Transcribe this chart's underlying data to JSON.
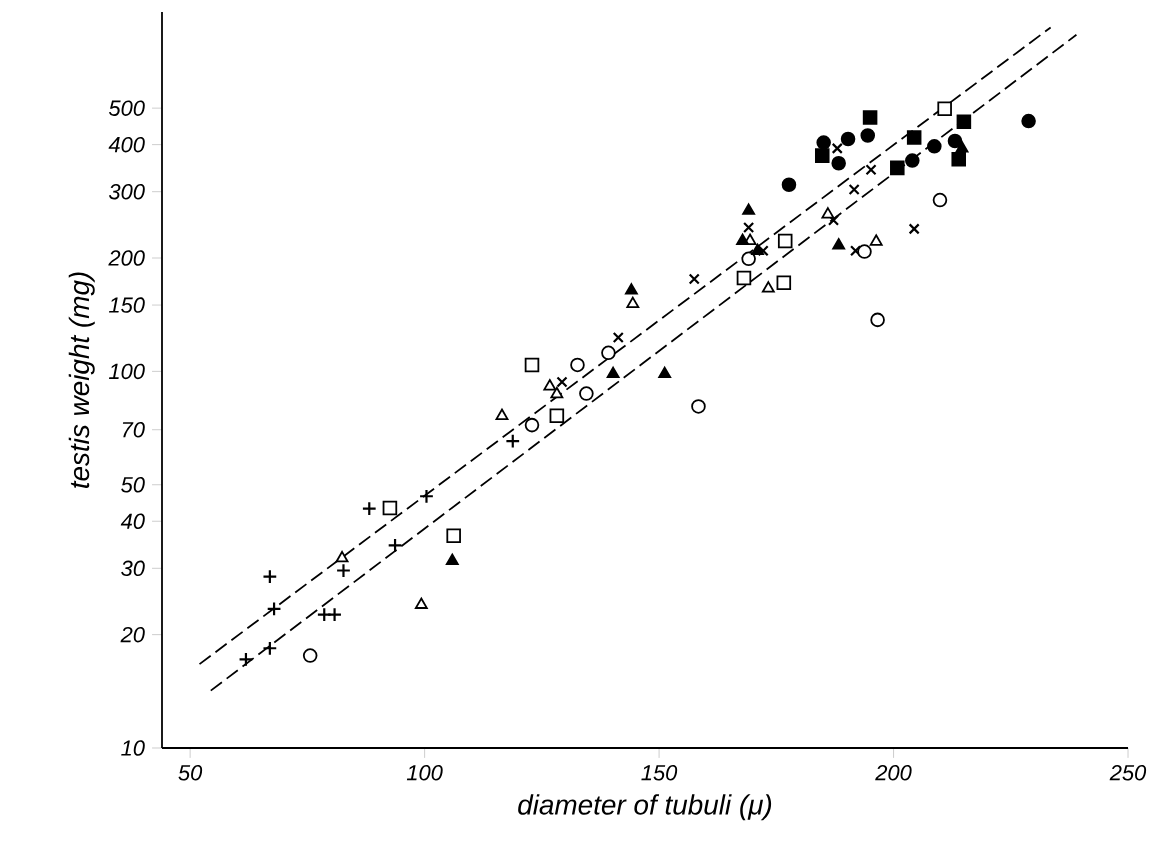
{
  "chart_data": {
    "type": "scatter",
    "xlabel": "diameter of tubuli (μ)",
    "ylabel": "testis weight (mg)",
    "log": "y",
    "xlim": [
      44,
      250
    ],
    "ylim": [
      10,
      900
    ],
    "xticks": [
      50,
      100,
      150,
      200,
      250
    ],
    "yticks": [
      10,
      20,
      30,
      40,
      50,
      70,
      100,
      150,
      200,
      300,
      400,
      500
    ],
    "series": [
      {
        "color": "#000000",
        "marker": "plus",
        "x": [
          61.9,
          67.0,
          67.0,
          67.9,
          78.6,
          80.8,
          82.7,
          88.2,
          93.7,
          100.4,
          118.8
        ],
        "values": [
          17.2,
          18.4,
          28.5,
          23.4,
          22.6,
          22.6,
          29.6,
          43.2,
          34.5,
          46.6,
          65.3
        ]
      },
      {
        "color": "#000000",
        "marker": "cross",
        "x": [
          129.3,
          141.3,
          157.5,
          169.1,
          172.2,
          187.2,
          188.0,
          191.6,
          195.2,
          191.9,
          204.4
        ],
        "values": [
          93.7,
          123,
          176,
          241,
          209,
          252,
          391,
          304,
          343,
          209,
          239
        ]
      },
      {
        "color": "#ffffff",
        "marker": "circle",
        "x": [
          75.6,
          122.9,
          132.6,
          134.5,
          139.2,
          158.4,
          169.1,
          193.8,
          196.6,
          209.9
        ],
        "values": [
          17.6,
          72,
          104,
          87.3,
          112,
          80.7,
          199,
          208,
          137,
          285
        ]
      },
      {
        "color": "#ffffff",
        "marker": "square",
        "x": [
          92.6,
          106.2,
          122.9,
          128.2,
          168.1,
          176.9,
          176.6,
          210.9
        ],
        "values": [
          43.4,
          36.6,
          104,
          76.2,
          177,
          222,
          172,
          498
        ]
      },
      {
        "color": "#ffffff",
        "marker": "triangle",
        "x": [
          82.4,
          99.3,
          116.5,
          126.7,
          128.2,
          144.4,
          169.4,
          173.3,
          186.0,
          196.3
        ],
        "values": [
          31.9,
          24,
          76.2,
          91.2,
          87,
          151,
          222,
          166,
          261,
          221
        ]
      },
      {
        "color": "#000000",
        "marker": "triangle",
        "x": [
          105.9,
          140.2,
          151.2,
          144.1,
          169.1,
          167.8,
          171.0,
          188.3,
          214.6
        ],
        "values": [
          31.4,
          98.4,
          98.4,
          164,
          267,
          222,
          209,
          216,
          391
        ]
      },
      {
        "color": "#000000",
        "marker": "circle",
        "x": [
          177.7,
          185.1,
          188.3,
          190.3,
          194.5,
          204.0,
          208.7,
          213.1,
          228.8
        ],
        "values": [
          313,
          405,
          357,
          414,
          423,
          363,
          396,
          409,
          462
        ]
      },
      {
        "color": "#000000",
        "marker": "square",
        "x": [
          184.8,
          195.0,
          204.4,
          200.8,
          215.0,
          213.9
        ],
        "values": [
          374,
          472,
          418,
          347,
          460,
          366
        ]
      },
      {
        "type": "line",
        "color": "#000000",
        "marker": "none",
        "line_style": "dashed",
        "x": [
          52.0,
          233.5
        ],
        "values": [
          16.7,
          819
        ]
      },
      {
        "type": "line",
        "color": "#000000",
        "marker": "none",
        "line_style": "dashed",
        "x": [
          54.4,
          239.0
        ],
        "values": [
          14.2,
          783
        ]
      }
    ]
  }
}
